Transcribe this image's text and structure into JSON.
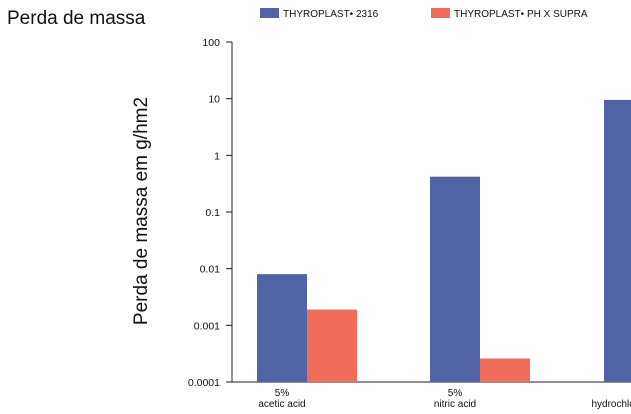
{
  "page": {
    "title": "Perda de massa"
  },
  "chart_data": {
    "type": "bar",
    "title": "",
    "xlabel": "",
    "ylabel": "Perda de massa em g/hm2",
    "yscale": "log",
    "ylim": [
      0.0001,
      100
    ],
    "y_ticks": [
      "100",
      "10",
      "1",
      "0.1",
      "0.01",
      "0.001",
      "0.0001"
    ],
    "y_tick_values": [
      100,
      10,
      1,
      0.1,
      0.01,
      0.001,
      0.0001
    ],
    "grid": false,
    "legend_position": "top",
    "categories": [
      {
        "line1": "5%",
        "line2": "acetic acid"
      },
      {
        "line1": "5%",
        "line2": "nitric acid"
      },
      {
        "line1": "",
        "line2": "hydrochloric acid"
      }
    ],
    "series": [
      {
        "name": "THYROPLAST• 2316",
        "color": "#5064a6",
        "values": [
          0.008,
          0.42,
          9.5
        ]
      },
      {
        "name": "THYROPLAST• PH X SUPRA",
        "color": "#f26c5a",
        "values": [
          0.0019,
          0.00026,
          null
        ]
      }
    ]
  }
}
